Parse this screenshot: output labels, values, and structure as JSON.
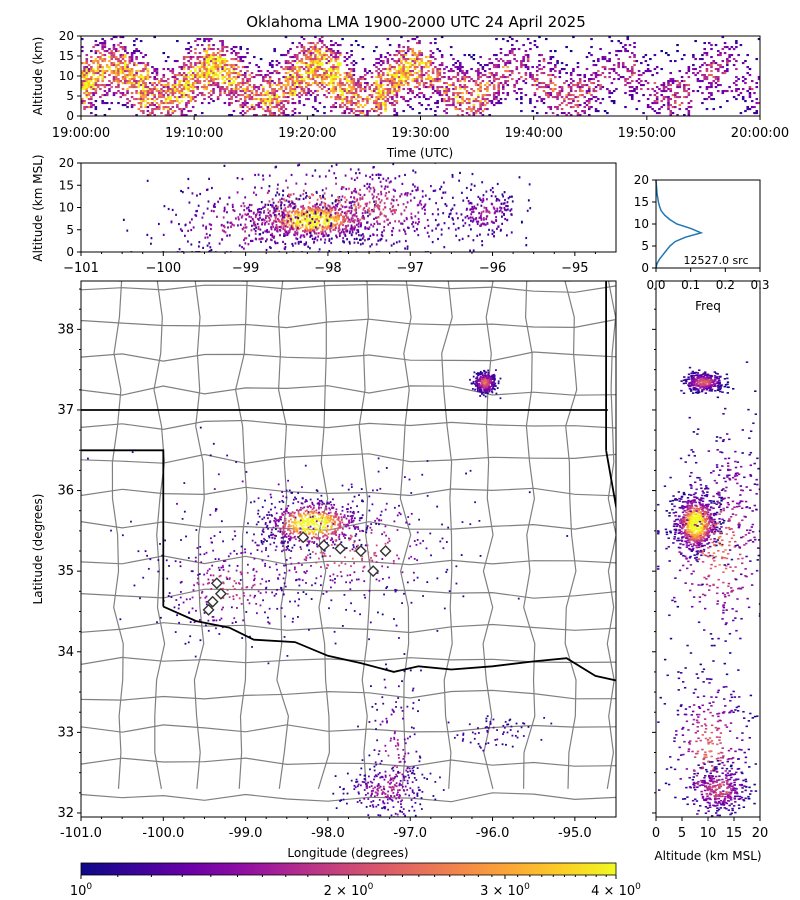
{
  "title": "Oklahoma LMA 1900-2000 UTC 24 April 2025",
  "colors": {
    "scale": [
      "#0d0887",
      "#3a049a",
      "#6a00a8",
      "#8f0da4",
      "#b12a90",
      "#cc4778",
      "#e16462",
      "#f2844b",
      "#fca636",
      "#fcce25",
      "#f0f921"
    ],
    "county_lines": "#808080",
    "state_lines": "#000000",
    "marker": "#333333",
    "histogram_line": "#1f77b4"
  },
  "chart_data": [
    {
      "id": "time_height",
      "type": "heatmap",
      "title": "",
      "xlabel": "Time (UTC)",
      "ylabel": "Altitude (km)",
      "x_ticks": [
        "19:00:00",
        "19:10:00",
        "19:20:00",
        "19:30:00",
        "19:40:00",
        "19:50:00",
        "20:00:00"
      ],
      "y_ticks": [
        "0",
        "5",
        "10",
        "15",
        "20"
      ],
      "xlim": [
        "19:00:00",
        "20:00:00"
      ],
      "ylim": [
        0,
        20
      ],
      "activity_by_minute": [
        0.9,
        0.85,
        0.7,
        0.8,
        0.75,
        0.95,
        0.7,
        0.75,
        0.8,
        0.9,
        0.85,
        0.95,
        0.9,
        0.75,
        0.7,
        0.6,
        0.8,
        0.75,
        0.85,
        0.9,
        0.95,
        0.9,
        0.95,
        0.85,
        0.7,
        0.6,
        0.9,
        0.85,
        0.95,
        0.8,
        0.7,
        0.55,
        0.6,
        0.75,
        0.6,
        0.65,
        0.5,
        0.45,
        0.45,
        0.4,
        0.55,
        0.5,
        0.45,
        0.5,
        0.45,
        0.4,
        0.35,
        0.3,
        0.45,
        0.35,
        0.4,
        0.35,
        0.45,
        0.4,
        0.3,
        0.45,
        0.4,
        0.35,
        0.3,
        0.3
      ]
    },
    {
      "id": "lon_alt",
      "type": "scatter",
      "xlabel": "",
      "ylabel": "Altitude (km MSL)",
      "x_ticks": [
        "−101",
        "−100",
        "−99",
        "−98",
        "−97",
        "−96",
        "−95"
      ],
      "y_ticks": [
        "0",
        "5",
        "10",
        "15",
        "20"
      ],
      "xlim": [
        -101,
        -94.5
      ],
      "ylim": [
        0,
        20
      ],
      "clusters": [
        {
          "lon": -98.2,
          "alt": 7.5,
          "lon_spread": 0.35,
          "alt_spread": 2.2,
          "density": 1.0
        },
        {
          "lon": -98.0,
          "alt": 10,
          "lon_spread": 0.9,
          "alt_spread": 5.0,
          "density": 0.55
        },
        {
          "lon": -97.4,
          "alt": 10,
          "lon_spread": 0.5,
          "alt_spread": 4.5,
          "density": 0.35
        },
        {
          "lon": -99.0,
          "alt": 6,
          "lon_spread": 0.6,
          "alt_spread": 4,
          "density": 0.3
        },
        {
          "lon": -96.1,
          "alt": 9,
          "lon_spread": 0.2,
          "alt_spread": 3.0,
          "density": 0.25
        }
      ]
    },
    {
      "id": "alt_histogram",
      "type": "line",
      "xlabel": "Freq",
      "ylabel": "",
      "x_ticks": [
        "0.0",
        "0.1",
        "0.2",
        "0.3"
      ],
      "y_ticks": [
        "0",
        "5",
        "10",
        "15",
        "20"
      ],
      "xlim": [
        0,
        0.3
      ],
      "ylim": [
        0,
        20
      ],
      "annotation": "12527.0 src",
      "points": [
        [
          0.0,
          0
        ],
        [
          0.003,
          1
        ],
        [
          0.01,
          2
        ],
        [
          0.02,
          3
        ],
        [
          0.03,
          4
        ],
        [
          0.04,
          5
        ],
        [
          0.055,
          6
        ],
        [
          0.085,
          7
        ],
        [
          0.13,
          8
        ],
        [
          0.1,
          9
        ],
        [
          0.06,
          10
        ],
        [
          0.04,
          11
        ],
        [
          0.025,
          12
        ],
        [
          0.015,
          13
        ],
        [
          0.01,
          14
        ],
        [
          0.007,
          15
        ],
        [
          0.005,
          16
        ],
        [
          0.003,
          17
        ],
        [
          0.002,
          18
        ],
        [
          0.001,
          19
        ],
        [
          0.0,
          20
        ]
      ]
    },
    {
      "id": "plan_view",
      "type": "scatter",
      "xlabel": "Longitude (degrees)",
      "ylabel": "Latitude (degrees)",
      "x_ticks": [
        "-101.0",
        "-100.0",
        "-99.0",
        "-98.0",
        "-97.0",
        "-96.0",
        "-95.0"
      ],
      "y_ticks": [
        "32",
        "33",
        "34",
        "35",
        "36",
        "37",
        "38"
      ],
      "xlim": [
        -101,
        -94.5
      ],
      "ylim": [
        31.95,
        38.6
      ],
      "clusters": [
        {
          "lon": -98.2,
          "lat": 35.6,
          "lon_spread": 0.3,
          "lat_spread": 0.15,
          "density": 1.0
        },
        {
          "lon": -97.8,
          "lat": 35.3,
          "lon_spread": 0.7,
          "lat_spread": 0.35,
          "density": 0.45
        },
        {
          "lon": -99.2,
          "lat": 34.8,
          "lon_spread": 0.5,
          "lat_spread": 0.35,
          "density": 0.35
        },
        {
          "lon": -98.5,
          "lat": 35.5,
          "lon_spread": 1.2,
          "lat_spread": 0.6,
          "density": 0.2
        },
        {
          "lon": -97.2,
          "lat": 32.6,
          "lon_spread": 0.15,
          "lat_spread": 0.6,
          "density": 0.3
        },
        {
          "lon": -97.3,
          "lat": 32.3,
          "lon_spread": 0.25,
          "lat_spread": 0.15,
          "density": 0.3
        },
        {
          "lon": -96.1,
          "lat": 37.35,
          "lon_spread": 0.07,
          "lat_spread": 0.07,
          "density": 0.5
        },
        {
          "lon": -96.0,
          "lat": 33.0,
          "lon_spread": 0.25,
          "lat_spread": 0.1,
          "density": 0.1
        }
      ],
      "stations": [
        [
          -98.3,
          35.42
        ],
        [
          -98.05,
          35.32
        ],
        [
          -97.85,
          35.28
        ],
        [
          -97.6,
          35.25
        ],
        [
          -97.3,
          35.25
        ],
        [
          -97.45,
          35.0
        ],
        [
          -99.35,
          34.85
        ],
        [
          -99.3,
          34.72
        ],
        [
          -99.4,
          34.62
        ],
        [
          -99.45,
          34.52
        ]
      ]
    },
    {
      "id": "lat_alt",
      "type": "scatter",
      "xlabel": "Altitude (km MSL)",
      "ylabel": "",
      "x_ticks": [
        "0",
        "5",
        "10",
        "15",
        "20"
      ],
      "xlim": [
        0,
        20
      ],
      "ylim": [
        31.95,
        38.6
      ],
      "clusters": [
        {
          "alt": 7.5,
          "lat": 35.6,
          "alt_spread": 2.0,
          "lat_spread": 0.18,
          "density": 1.0
        },
        {
          "alt": 12,
          "lat": 35.3,
          "alt_spread": 5.5,
          "lat_spread": 0.6,
          "density": 0.5
        },
        {
          "alt": 14,
          "lat": 36.0,
          "alt_spread": 4.5,
          "lat_spread": 0.6,
          "density": 0.2
        },
        {
          "alt": 10,
          "lat": 32.8,
          "alt_spread": 4,
          "lat_spread": 0.5,
          "density": 0.45
        },
        {
          "alt": 12,
          "lat": 32.3,
          "alt_spread": 3,
          "lat_spread": 0.15,
          "density": 0.4
        },
        {
          "alt": 9,
          "lat": 37.35,
          "alt_spread": 2,
          "lat_spread": 0.06,
          "density": 0.45
        }
      ]
    },
    {
      "id": "colorbar",
      "type": "heatmap",
      "tick_labels": [
        "10",
        "2 × 10",
        "3 × 10",
        "4 × 10"
      ],
      "tick_exponents": [
        "0",
        "0",
        "0",
        "0"
      ],
      "values": [
        1,
        2,
        3,
        4
      ],
      "range": [
        1,
        4
      ],
      "scale": "log"
    }
  ]
}
